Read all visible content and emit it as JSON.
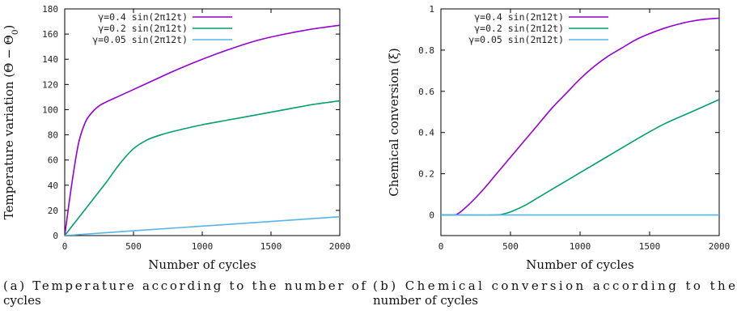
{
  "chart_data": [
    {
      "type": "line",
      "caption_lines": [
        "(a) Temperature according to the number of",
        "cycles"
      ],
      "xlabel": "Number of cycles",
      "ylabel": "Temperature variation (Θ − Θ",
      "ylabel_sub": "0",
      "ylabel_close": ")",
      "xlim": [
        0,
        2000
      ],
      "ylim": [
        0,
        180
      ],
      "xticks": [
        0,
        500,
        1000,
        1500,
        2000
      ],
      "yticks": [
        0,
        20,
        40,
        60,
        80,
        100,
        120,
        140,
        160,
        180
      ],
      "ytick_labels": [
        "0",
        "20",
        "40",
        "60",
        "80",
        "100",
        "120",
        "140",
        "160",
        "180"
      ],
      "legend_position": "top-left",
      "series": [
        {
          "name": "γ=0.4 sin(2π12t)",
          "color": "#9400d3",
          "x": [
            0,
            50,
            100,
            150,
            200,
            250,
            300,
            400,
            500,
            600,
            700,
            800,
            1000,
            1200,
            1400,
            1600,
            1800,
            2000
          ],
          "y": [
            0,
            40,
            73,
            90,
            98,
            103,
            106,
            111,
            116,
            121,
            126,
            131,
            140,
            148,
            155,
            160,
            164,
            167
          ]
        },
        {
          "name": "γ=0.2 sin(2π12t)",
          "color": "#009e73",
          "x": [
            0,
            100,
            200,
            300,
            400,
            500,
            600,
            700,
            800,
            1000,
            1200,
            1400,
            1600,
            1800,
            2000
          ],
          "y": [
            0,
            14,
            28,
            42,
            57,
            69,
            76,
            80,
            83,
            88,
            92,
            96,
            100,
            104,
            107
          ]
        },
        {
          "name": "γ=0.05 sin(2π12t)",
          "color": "#56b4e9",
          "x": [
            0,
            500,
            1000,
            1500,
            2000
          ],
          "y": [
            0,
            3.8,
            7.5,
            11.2,
            15
          ]
        }
      ]
    },
    {
      "type": "line",
      "caption_lines": [
        "(b) Chemical conversion according to the",
        "number of cycles"
      ],
      "xlabel": "Number of cycles",
      "ylabel": "Chemical conversion (ξ)",
      "xlim": [
        0,
        2000
      ],
      "ylim": [
        -0.1,
        1
      ],
      "xticks": [
        0,
        500,
        1000,
        1500,
        2000
      ],
      "yticks": [
        0,
        0.2,
        0.4,
        0.6,
        0.8,
        1
      ],
      "ytick_labels": [
        "0",
        "0.2",
        "0.4",
        "0.6",
        "0.8",
        "1"
      ],
      "legend_position": "top-left",
      "series": [
        {
          "name": "γ=0.4 sin(2π12t)",
          "color": "#9400d3",
          "x": [
            0,
            80,
            120,
            200,
            300,
            400,
            500,
            600,
            700,
            800,
            900,
            1000,
            1100,
            1200,
            1300,
            1400,
            1500,
            1600,
            1700,
            1800,
            1900,
            2000
          ],
          "y": [
            0,
            0,
            0.005,
            0.05,
            0.12,
            0.2,
            0.28,
            0.36,
            0.44,
            0.52,
            0.59,
            0.66,
            0.72,
            0.77,
            0.81,
            0.85,
            0.88,
            0.905,
            0.925,
            0.94,
            0.95,
            0.955
          ]
        },
        {
          "name": "γ=0.2 sin(2π12t)",
          "color": "#009e73",
          "x": [
            0,
            380,
            450,
            500,
            600,
            700,
            800,
            1000,
            1200,
            1400,
            1600,
            1800,
            2000
          ],
          "y": [
            0,
            0,
            0.005,
            0.015,
            0.045,
            0.085,
            0.125,
            0.205,
            0.285,
            0.365,
            0.44,
            0.5,
            0.56
          ]
        },
        {
          "name": "γ=0.05 sin(2π12t)",
          "color": "#56b4e9",
          "x": [
            0,
            2000
          ],
          "y": [
            0,
            0
          ]
        }
      ]
    }
  ]
}
